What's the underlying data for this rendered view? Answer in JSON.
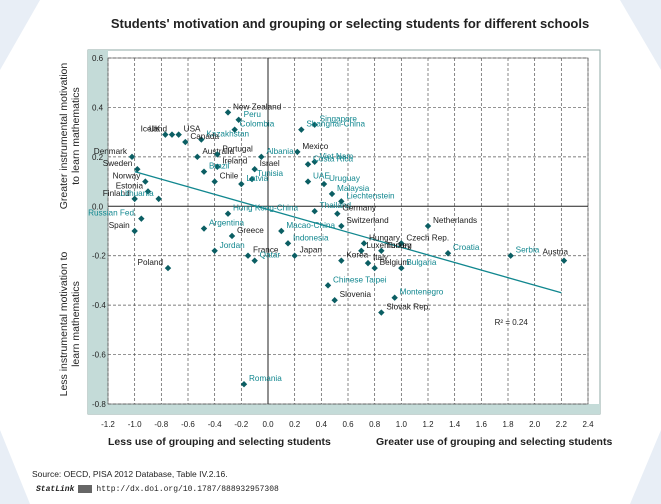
{
  "title": "Students' motivation and grouping or selecting students for different schools",
  "footer": {
    "source": "Source: OECD, PISA 2012 Database, Table IV.2.16.",
    "statlink_label": "StatLink",
    "url": "http://dx.doi.org/10.1787/888932957308"
  },
  "chart_data": {
    "type": "scatter",
    "xlabel_left": "Less use of grouping and selecting students",
    "xlabel_right": "Greater use of grouping and selecting students",
    "ylabel_top": "Greater instrumental motivation to learn mathematics",
    "ylabel_bottom": "Less instrumental motivation to learn mathematics",
    "xlim": [
      -1.2,
      2.4
    ],
    "ylim": [
      -0.8,
      0.6
    ],
    "x_ticks": [
      "-1.2",
      "-1.0",
      "-0.8",
      "-0.6",
      "-0.4",
      "-0.2",
      "0.0",
      "0.2",
      "0.4",
      "0.6",
      "0.8",
      "1.0",
      "1.2",
      "1.4",
      "1.6",
      "1.8",
      "2.0",
      "2.2",
      "2.4"
    ],
    "y_ticks": [
      "0.6",
      "0.4",
      "0.2",
      "0.0",
      "-0.2",
      "-0.4",
      "-0.6",
      "-0.8"
    ],
    "grid": true,
    "r2_label": "R² = 0.24",
    "trend": {
      "x": [
        -1.0,
        2.2
      ],
      "y": [
        0.14,
        -0.35
      ]
    },
    "colors": {
      "point": "#0b5e63",
      "label_dark": "#1a1a1a",
      "label_teal": "#11878f",
      "axis_bg": "#c4dbd8",
      "page_edge": "#e6edf5"
    },
    "points": [
      {
        "name": "New Zealand",
        "x": -0.3,
        "y": 0.38,
        "label_color": "dark"
      },
      {
        "name": "Peru",
        "x": -0.22,
        "y": 0.35,
        "label_color": "teal"
      },
      {
        "name": "Singapore",
        "x": 0.35,
        "y": 0.33,
        "label_color": "teal"
      },
      {
        "name": "UK",
        "x": -0.77,
        "y": 0.29,
        "label_color": "dark"
      },
      {
        "name": "USA",
        "x": -0.67,
        "y": 0.29,
        "label_color": "dark"
      },
      {
        "name": "Colombia",
        "x": -0.25,
        "y": 0.31,
        "label_color": "teal"
      },
      {
        "name": "Shanghai-China",
        "x": 0.25,
        "y": 0.31,
        "label_color": "teal"
      },
      {
        "name": "Iceland",
        "x": -0.72,
        "y": 0.29,
        "label_color": "dark"
      },
      {
        "name": "Kazakhstan",
        "x": -0.5,
        "y": 0.27,
        "label_color": "teal"
      },
      {
        "name": "Canada",
        "x": -0.62,
        "y": 0.26,
        "label_color": "dark"
      },
      {
        "name": "Mexico",
        "x": 0.22,
        "y": 0.22,
        "label_color": "dark"
      },
      {
        "name": "Denmark",
        "x": -1.02,
        "y": 0.2,
        "label_color": "dark"
      },
      {
        "name": "Australia",
        "x": -0.53,
        "y": 0.2,
        "label_color": "dark"
      },
      {
        "name": "Portugal",
        "x": -0.38,
        "y": 0.21,
        "label_color": "dark"
      },
      {
        "name": "Viet Nam",
        "x": 0.35,
        "y": 0.18,
        "label_color": "teal"
      },
      {
        "name": "Albania",
        "x": -0.05,
        "y": 0.2,
        "label_color": "teal"
      },
      {
        "name": "Ireland",
        "x": -0.38,
        "y": 0.16,
        "label_color": "dark"
      },
      {
        "name": "Israel",
        "x": -0.1,
        "y": 0.15,
        "label_color": "dark"
      },
      {
        "name": "Costa Rica",
        "x": 0.3,
        "y": 0.17,
        "label_color": "teal"
      },
      {
        "name": "Brazil",
        "x": -0.48,
        "y": 0.14,
        "label_color": "teal"
      },
      {
        "name": "Sweden",
        "x": -0.98,
        "y": 0.15,
        "label_color": "dark"
      },
      {
        "name": "Norway",
        "x": -0.92,
        "y": 0.1,
        "label_color": "dark"
      },
      {
        "name": "Tunisia",
        "x": -0.12,
        "y": 0.11,
        "label_color": "teal"
      },
      {
        "name": "UAE",
        "x": 0.3,
        "y": 0.1,
        "label_color": "teal"
      },
      {
        "name": "Uruguay",
        "x": 0.42,
        "y": 0.09,
        "label_color": "teal"
      },
      {
        "name": "Chile",
        "x": -0.4,
        "y": 0.1,
        "label_color": "dark"
      },
      {
        "name": "Latvia",
        "x": -0.2,
        "y": 0.09,
        "label_color": "teal"
      },
      {
        "name": "Malaysia",
        "x": 0.48,
        "y": 0.05,
        "label_color": "teal"
      },
      {
        "name": "Estonia",
        "x": -0.9,
        "y": 0.06,
        "label_color": "dark"
      },
      {
        "name": "Liechtenstein",
        "x": 0.55,
        "y": 0.02,
        "label_color": "teal"
      },
      {
        "name": "Finland",
        "x": -1.0,
        "y": 0.03,
        "label_color": "dark"
      },
      {
        "name": "Lithuania",
        "x": -0.82,
        "y": 0.03,
        "label_color": "teal"
      },
      {
        "name": "Thailand",
        "x": 0.35,
        "y": -0.02,
        "label_color": "teal"
      },
      {
        "name": "Germany",
        "x": 0.52,
        "y": -0.03,
        "label_color": "dark"
      },
      {
        "name": "Hong Kong-China",
        "x": -0.3,
        "y": -0.03,
        "label_color": "teal"
      },
      {
        "name": "Russian Fed.",
        "x": -0.95,
        "y": -0.05,
        "label_color": "teal"
      },
      {
        "name": "Spain",
        "x": -1.0,
        "y": -0.1,
        "label_color": "dark"
      },
      {
        "name": "Switzerland",
        "x": 0.55,
        "y": -0.08,
        "label_color": "dark"
      },
      {
        "name": "Macao-China",
        "x": 0.1,
        "y": -0.1,
        "label_color": "teal"
      },
      {
        "name": "Netherlands",
        "x": 1.2,
        "y": -0.08,
        "label_color": "dark"
      },
      {
        "name": "Argentina",
        "x": -0.48,
        "y": -0.09,
        "label_color": "teal"
      },
      {
        "name": "Greece",
        "x": -0.27,
        "y": -0.12,
        "label_color": "dark"
      },
      {
        "name": "Czech Rep.",
        "x": 1.0,
        "y": -0.15,
        "label_color": "dark"
      },
      {
        "name": "Hungary",
        "x": 0.72,
        "y": -0.15,
        "label_color": "dark"
      },
      {
        "name": "Indonesia",
        "x": 0.15,
        "y": -0.15,
        "label_color": "teal"
      },
      {
        "name": "Jordan",
        "x": -0.4,
        "y": -0.18,
        "label_color": "teal"
      },
      {
        "name": "Luxembourg",
        "x": 0.7,
        "y": -0.18,
        "label_color": "dark"
      },
      {
        "name": "Turkey",
        "x": 0.85,
        "y": -0.18,
        "label_color": "dark"
      },
      {
        "name": "Croatia",
        "x": 1.35,
        "y": -0.19,
        "label_color": "teal"
      },
      {
        "name": "Serbia",
        "x": 1.82,
        "y": -0.2,
        "label_color": "teal"
      },
      {
        "name": "Austria",
        "x": 2.22,
        "y": -0.22,
        "label_color": "dark"
      },
      {
        "name": "France",
        "x": -0.15,
        "y": -0.2,
        "label_color": "dark"
      },
      {
        "name": "Qatar",
        "x": -0.1,
        "y": -0.22,
        "label_color": "teal"
      },
      {
        "name": "Japan",
        "x": 0.2,
        "y": -0.2,
        "label_color": "dark"
      },
      {
        "name": "Korea",
        "x": 0.55,
        "y": -0.22,
        "label_color": "dark"
      },
      {
        "name": "Italy",
        "x": 0.75,
        "y": -0.23,
        "label_color": "dark"
      },
      {
        "name": "Belgium",
        "x": 0.8,
        "y": -0.25,
        "label_color": "dark"
      },
      {
        "name": "Bulgaria",
        "x": 1.0,
        "y": -0.25,
        "label_color": "teal"
      },
      {
        "name": "Poland",
        "x": -0.75,
        "y": -0.25,
        "label_color": "dark"
      },
      {
        "name": "Chinese Taipei",
        "x": 0.45,
        "y": -0.32,
        "label_color": "teal"
      },
      {
        "name": "Montenegro",
        "x": 0.95,
        "y": -0.37,
        "label_color": "teal"
      },
      {
        "name": "Slovenia",
        "x": 0.5,
        "y": -0.38,
        "label_color": "dark"
      },
      {
        "name": "Slovak Rep.",
        "x": 0.85,
        "y": -0.43,
        "label_color": "dark"
      },
      {
        "name": "Romania",
        "x": -0.18,
        "y": -0.72,
        "label_color": "teal"
      }
    ]
  }
}
